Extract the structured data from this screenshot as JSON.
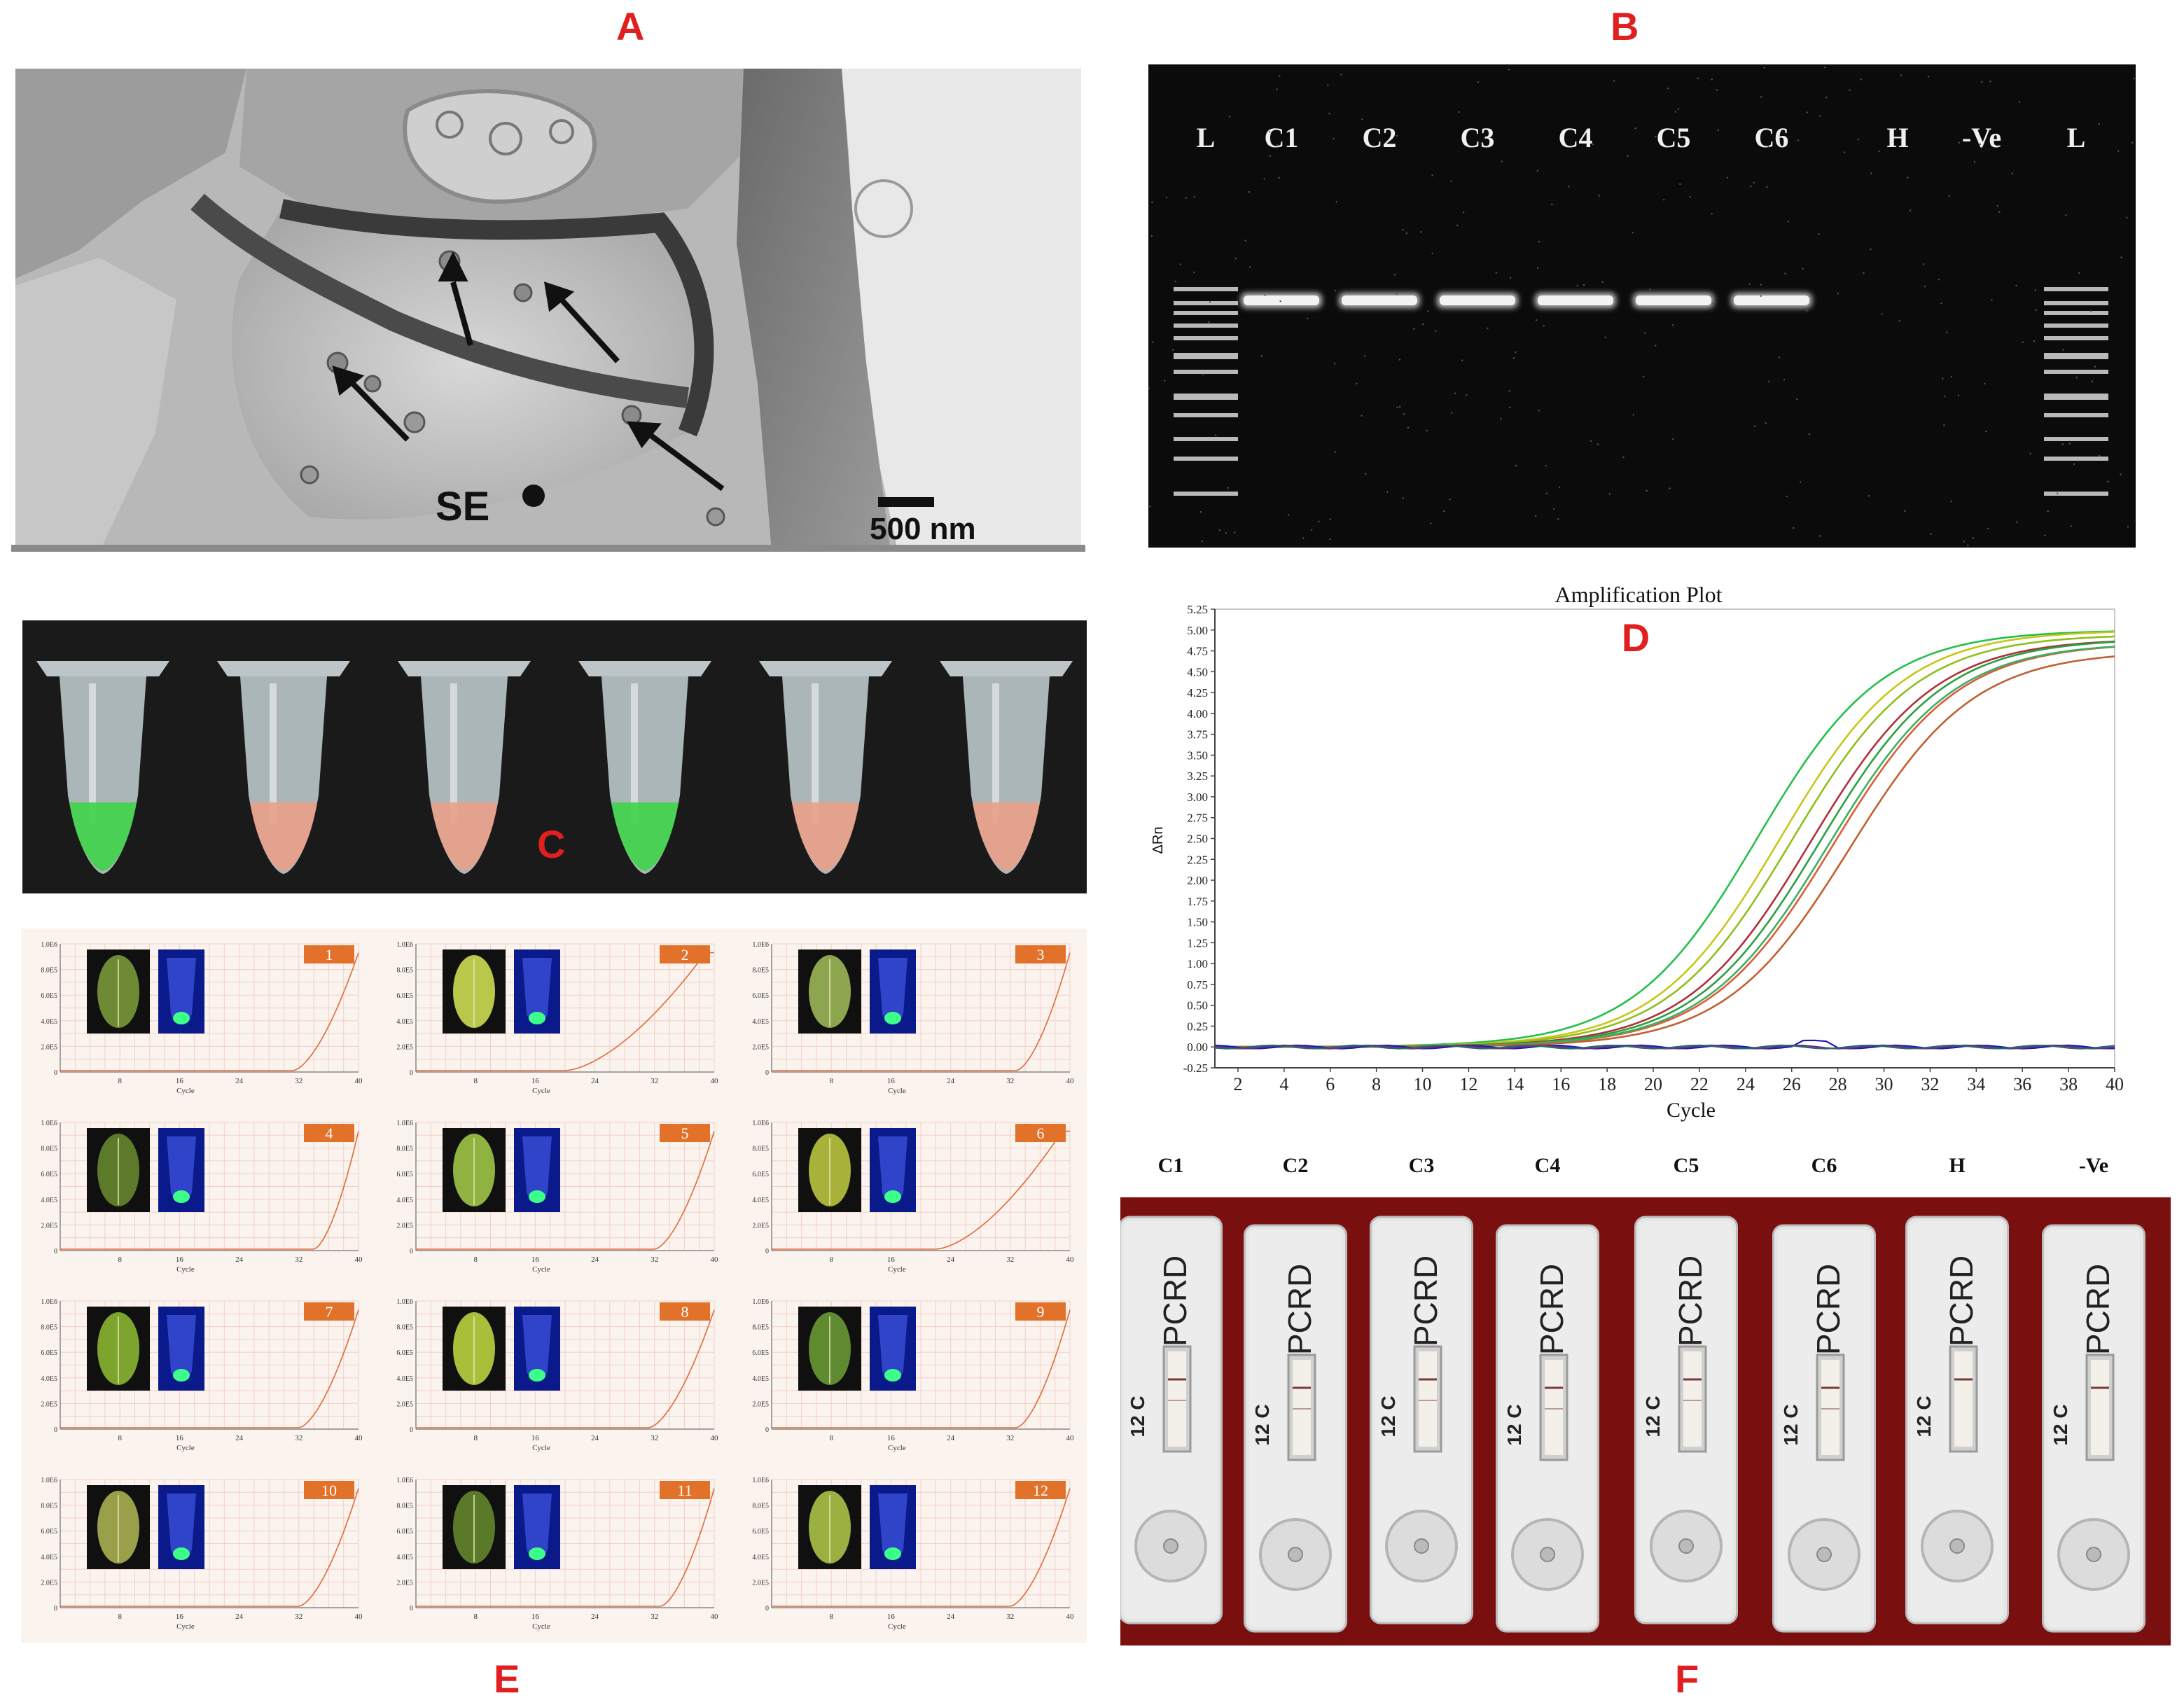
{
  "panel_labels": {
    "a": "A",
    "b": "B",
    "c": "C",
    "d": "D",
    "e": "E",
    "f": "F"
  },
  "colors": {
    "label_red": "#e02020",
    "gel_bg": "#0b0b0b",
    "band": "#f2f2f2",
    "cassette_bg": "#7a0f10",
    "orange_tag": "#e2722a",
    "curve_orange": "#e06a3a"
  },
  "panel_a": {
    "marker": "SE",
    "scale_bar": "500 nm"
  },
  "panel_b": {
    "lanes": [
      "L",
      "C1",
      "C2",
      "C3",
      "C4",
      "C5",
      "C6",
      "H",
      "-Ve",
      "L"
    ]
  },
  "panel_c": {
    "tubes": [
      {
        "color": "green"
      },
      {
        "color": "pink"
      },
      {
        "color": "pink"
      },
      {
        "color": "green"
      },
      {
        "color": "pink"
      },
      {
        "color": "pink"
      }
    ]
  },
  "chart_data": {
    "type": "line",
    "title": "Amplification Plot",
    "xlabel": "Cycle",
    "ylabel": "ΔRn",
    "xlim": [
      1,
      40
    ],
    "ylim": [
      -0.25,
      5.25
    ],
    "x_ticks": [
      "2",
      "4",
      "6",
      "8",
      "10",
      "12",
      "14",
      "16",
      "18",
      "20",
      "22",
      "24",
      "26",
      "28",
      "30",
      "32",
      "34",
      "36",
      "38",
      "40"
    ],
    "y_ticks": [
      "-0.25",
      "0.00",
      "0.25",
      "0.50",
      "0.75",
      "1.00",
      "1.25",
      "1.50",
      "1.75",
      "2.00",
      "2.25",
      "2.50",
      "2.75",
      "3.00",
      "3.25",
      "3.50",
      "3.75",
      "4.00",
      "4.25",
      "4.50",
      "4.75",
      "5.00",
      "5.25"
    ],
    "grid": false,
    "series": [
      {
        "color": "#22c04a",
        "midpoint": 24.5,
        "max": 5.0
      },
      {
        "color": "#c6c61a",
        "midpoint": 25.5,
        "max": 5.0
      },
      {
        "color": "#8fbf1a",
        "midpoint": 26.0,
        "max": 4.95
      },
      {
        "color": "#b0303a",
        "midpoint": 26.8,
        "max": 4.9
      },
      {
        "color": "#2aa040",
        "midpoint": 27.2,
        "max": 4.9
      },
      {
        "color": "#e05a3a",
        "midpoint": 27.8,
        "max": 4.85
      },
      {
        "color": "#3cb060",
        "midpoint": 27.6,
        "max": 4.85
      },
      {
        "color": "#c06030",
        "midpoint": 28.5,
        "max": 4.75
      }
    ],
    "flat_series_colors": [
      "#1b1bb0",
      "#6a2a8a",
      "#2a6a6a"
    ]
  },
  "panel_e": {
    "xlabel": "Cycle",
    "y_ticks": [
      "1.0E6",
      "8.0E5",
      "6.0E5",
      "4.0E5",
      "2.0E5",
      "0"
    ],
    "x_ticks": [
      "8",
      "16",
      "24",
      "32",
      "40"
    ],
    "tiles": [
      {
        "num": "1",
        "leaf": "#6f8a35",
        "start": 0.78
      },
      {
        "num": "2",
        "leaf": "#b9c84a",
        "start": 0.5
      },
      {
        "num": "3",
        "leaf": "#8ea550",
        "start": 0.82
      },
      {
        "num": "4",
        "leaf": "#5d7a2a",
        "start": 0.85
      },
      {
        "num": "5",
        "leaf": "#8fb240",
        "start": 0.8
      },
      {
        "num": "6",
        "leaf": "#a8b23a",
        "start": 0.55
      },
      {
        "num": "7",
        "leaf": "#7da52e",
        "start": 0.8
      },
      {
        "num": "8",
        "leaf": "#a9bf3a",
        "start": 0.78
      },
      {
        "num": "9",
        "leaf": "#5f8a30",
        "start": 0.82
      },
      {
        "num": "10",
        "leaf": "#9aa04a",
        "start": 0.8
      },
      {
        "num": "11",
        "leaf": "#5a7a2a",
        "start": 0.82
      },
      {
        "num": "12",
        "leaf": "#9ab040",
        "start": 0.8
      }
    ]
  },
  "panel_f": {
    "lanes": [
      "C1",
      "C2",
      "C3",
      "C4",
      "C5",
      "C6",
      "H",
      "-Ve"
    ],
    "brand": "PCRD",
    "side_text": "12 C"
  }
}
